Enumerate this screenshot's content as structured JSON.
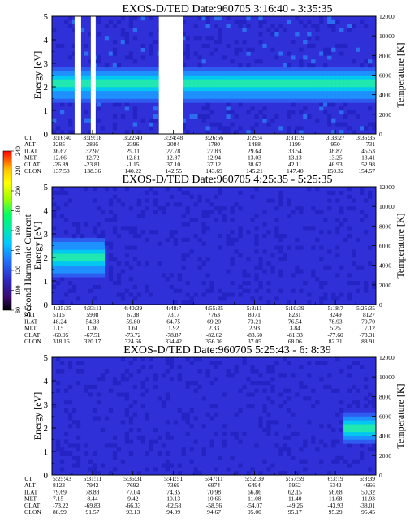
{
  "colorbar": {
    "label": "Second Harmonic Current",
    "ticks": [
      "80",
      "100",
      "120",
      "140",
      "160",
      "180",
      "200",
      "220",
      "240"
    ],
    "colors": [
      "#000000",
      "#3a0a6e",
      "#2b2bc8",
      "#1e78ff",
      "#00c8ff",
      "#00e6b4",
      "#00ff64",
      "#a0ff00",
      "#ffff00",
      "#ffc800",
      "#ff6400",
      "#ff0000"
    ]
  },
  "row_labels": [
    "UT",
    "ALT",
    "ILAT",
    "MLT",
    "GLAT",
    "GLON"
  ],
  "chart_data": [
    {
      "type": "heatmap",
      "title": "EXOS-D/TED   Date:960705   3:16:40 - 3:35:35",
      "ylabel": "Energy [eV]",
      "y2label": "Temperature [K]",
      "ylim": [
        0,
        5
      ],
      "y2lim": [
        0,
        12000
      ],
      "yticks": [
        "0",
        "1",
        "2",
        "3",
        "4",
        "5"
      ],
      "y2ticks": [
        "0",
        "2000",
        "4000",
        "6000",
        "8000",
        "10000",
        "12000"
      ],
      "gaps": [
        [
          0.07,
          0.09
        ],
        [
          0.12,
          0.135
        ],
        [
          0.33,
          0.405
        ]
      ],
      "band": {
        "center": 2.1,
        "width": 0.7
      },
      "x_columns": [
        [
          "3:16:40",
          "3285",
          "36.67",
          "12.66",
          "-26.89",
          "137.58"
        ],
        [
          "3:19:18",
          "2895",
          "32.97",
          "12.72",
          "-23.81",
          "138.36"
        ],
        [
          "3:22:40",
          "2396",
          "29.11",
          "12.81",
          "-1.15",
          "140.22"
        ],
        [
          "3:24:48",
          "2084",
          "27.78",
          "12.87",
          "37.10",
          "142.55"
        ],
        [
          "3:26:56",
          "1780",
          "27.83",
          "12.94",
          "37.12",
          "143.69"
        ],
        [
          "3:29:4",
          "1488",
          "29.64",
          "13.03",
          "38.67",
          "145.21"
        ],
        [
          "3:31:19",
          "1199",
          "33.54",
          "13.13",
          "42.11",
          "147.40"
        ],
        [
          "3:33:27",
          "950",
          "38.87",
          "13.25",
          "46.93",
          "150.32"
        ],
        [
          "3:35:35",
          "731",
          "45.53",
          "13.41",
          "52.98",
          "154.57"
        ]
      ]
    },
    {
      "type": "heatmap",
      "title": "EXOS-D/TED   Date:960705   4:25:35 - 5:25:35",
      "ylabel": "Energy [eV]",
      "y2label": "Temperature [K]",
      "ylim": [
        0,
        5
      ],
      "y2lim": [
        0,
        12000
      ],
      "yticks": [
        "0",
        "1",
        "2",
        "3",
        "4",
        "5"
      ],
      "y2ticks": [
        "0",
        "2000",
        "4000",
        "6000",
        "8000",
        "10000",
        "12000"
      ],
      "gaps": [],
      "band": {
        "center": 2.0,
        "width": 0.8,
        "end": 0.15
      },
      "x_columns": [
        [
          "4:25:35",
          "5115",
          "48.24",
          "1.15",
          "-60.05",
          "318.16"
        ],
        [
          "4:33:11",
          "5998",
          "54.33",
          "1.36",
          "-67.51",
          "320.17"
        ],
        [
          "4:40:39",
          "6738",
          "59.80",
          "1.61",
          "-73.72",
          "324.66"
        ],
        [
          "4:48:7",
          "7317",
          "64.75",
          "1.92",
          "-78.87",
          "334.42"
        ],
        [
          "4:55:35",
          "7763",
          "69.20",
          "2.33",
          "-82.62",
          "356.36"
        ],
        [
          "5:3:11",
          "8071",
          "73.21",
          "2.93",
          "-83.60",
          "37.05"
        ],
        [
          "5:10:39",
          "8231",
          "76.54",
          "3.84",
          "-81.33",
          "68.06"
        ],
        [
          "5:18:7",
          "8249",
          "78.93",
          "5.25",
          "-77.60",
          "82.31"
        ],
        [
          "5:25:35",
          "8127",
          "79.70",
          "7.12",
          "-73.31",
          "88.91"
        ]
      ]
    },
    {
      "type": "heatmap",
      "title": "EXOS-D/TED   Date:960705   5:25:43 - 6:  8:39",
      "ylabel": "Energy [eV]",
      "y2label": "Temperature [K]",
      "ylim": [
        0,
        5
      ],
      "y2lim": [
        0,
        12000
      ],
      "yticks": [
        "0",
        "1",
        "2",
        "3",
        "4",
        "5"
      ],
      "y2ticks": [
        "0",
        "2000",
        "4000",
        "6000",
        "8000",
        "10000",
        "12000"
      ],
      "gaps": [],
      "band": {
        "center": 2.0,
        "width": 0.6,
        "start": 0.9
      },
      "x_columns": [
        [
          "5:25:43",
          "8123",
          "79.69",
          "7.15",
          "-73.22",
          "88.99"
        ],
        [
          "5:31:11",
          "7942",
          "78.88",
          "8.44",
          "-69.83",
          "91.57"
        ],
        [
          "5:36:31",
          "7692",
          "77.04",
          "9.42",
          "-66.33",
          "93.13"
        ],
        [
          "5:41:51",
          "7369",
          "74.35",
          "10.13",
          "-62.58",
          "94.09"
        ],
        [
          "5:47:11",
          "6974",
          "70.98",
          "10.66",
          "-58.56",
          "94.67"
        ],
        [
          "5:52:39",
          "6494",
          "66.86",
          "11.08",
          "-54.07",
          "95.00"
        ],
        [
          "5:57:59",
          "5952",
          "62.15",
          "11.40",
          "-49.26",
          "95.17"
        ],
        [
          "6:3:19",
          "5342",
          "56.68",
          "11.68",
          "-43.93",
          "95.29"
        ],
        [
          "6:8:39",
          "4666",
          "50.32",
          "11.93",
          "-38.01",
          "95.45"
        ]
      ]
    }
  ]
}
